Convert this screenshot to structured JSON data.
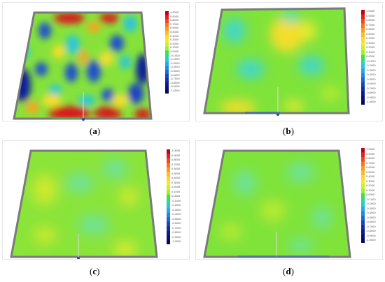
{
  "panels": [
    {
      "id": "a",
      "caption": "a",
      "variant": "deviated"
    },
    {
      "id": "b",
      "caption": "b",
      "variant": "mild"
    },
    {
      "id": "c",
      "caption": "c",
      "variant": "flat"
    },
    {
      "id": "d",
      "caption": "d",
      "variant": "flat"
    }
  ],
  "legend": {
    "values": [
      "1.0000",
      "0.9000",
      "0.8000",
      "0.7000",
      "0.6000",
      "0.5000",
      "0.4000",
      "0.3000",
      "0.2000",
      "0.1000",
      "0.0000",
      "-0.1000",
      "-0.2000",
      "-0.3000",
      "-0.4000",
      "-0.5000",
      "-0.6000",
      "-0.7000",
      "-0.8000",
      "-0.9000",
      "-1.0000"
    ],
    "colors": [
      "#c0001a",
      "#e3201a",
      "#f1461e",
      "#f7761f",
      "#fb9c1f",
      "#fdbc25",
      "#ffd82b",
      "#f0ea2a",
      "#cdee2e",
      "#9ff035",
      "#3ee53c",
      "#2fd6a0",
      "#2bc7d8",
      "#27a8e6",
      "#2289dd",
      "#1c68d0",
      "#1747bd",
      "#122ea4",
      "#0c1c8c",
      "#071274",
      "#040b5c"
    ]
  },
  "colors": {
    "frame": "#7a7a7a",
    "base_green": "#7fe33a",
    "yellow": "#e3ef2f",
    "cyan": "#45d8c4",
    "blue": "#1d5ad2",
    "red": "#d8161a"
  }
}
